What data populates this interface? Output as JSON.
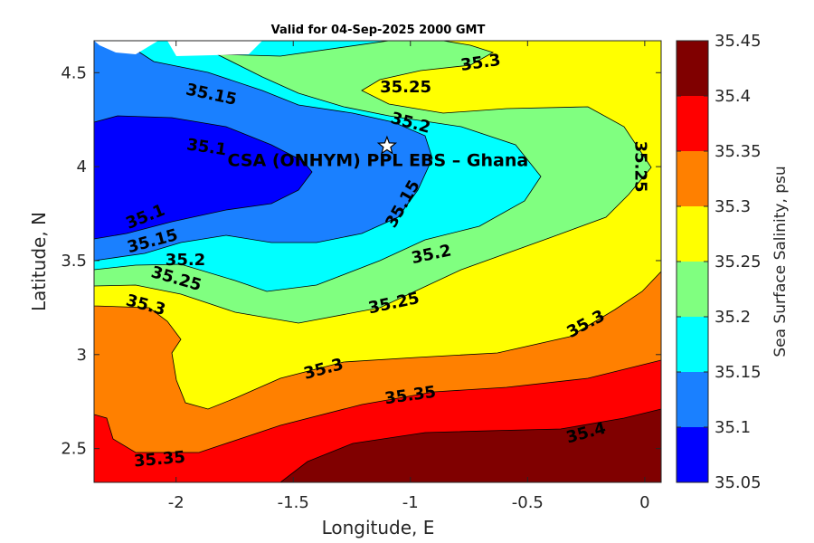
{
  "chart_data": {
    "type": "contour",
    "title": "Valid for 04-Sep-2025 2000 GMT",
    "xlabel": "Longitude, E",
    "ylabel": "Latitude, N",
    "xlim": [
      -2.35,
      0.07
    ],
    "ylim": [
      2.32,
      4.67
    ],
    "x_ticks": [
      -2,
      -1.5,
      -1,
      -0.5,
      0
    ],
    "x_tick_labels": [
      "-2",
      "-1.5",
      "-1",
      "-0.5",
      "0"
    ],
    "y_ticks": [
      2.5,
      3,
      3.5,
      4,
      4.5
    ],
    "y_tick_labels": [
      "2.5",
      "3",
      "3.5",
      "4",
      "4.5"
    ],
    "colorbar": {
      "label": "Sea Surface Salinity, psu",
      "levels": [
        35.05,
        35.1,
        35.15,
        35.2,
        35.25,
        35.3,
        35.35,
        35.4,
        35.45
      ],
      "level_labels": [
        "35.05",
        "35.1",
        "35.15",
        "35.2",
        "35.25",
        "35.3",
        "35.35",
        "35.4",
        "35.45"
      ],
      "colors": [
        "#0000ff",
        "#1a80ff",
        "#00ffff",
        "#80ff80",
        "#ffff00",
        "#ff8000",
        "#ff0000",
        "#800000"
      ]
    },
    "contour_labels": [
      {
        "text": "35.3",
        "lon": -0.7,
        "lat": 4.55
      },
      {
        "text": "35.25",
        "lon": -1.02,
        "lat": 4.42
      },
      {
        "text": "35.15",
        "lon": -1.85,
        "lat": 4.38
      },
      {
        "text": "35.2",
        "lon": -1.0,
        "lat": 4.23
      },
      {
        "text": "35.1",
        "lon": -1.87,
        "lat": 4.1
      },
      {
        "text": "35.25",
        "lon": -0.02,
        "lat": 4.0
      },
      {
        "text": "35.15",
        "lon": -1.03,
        "lat": 3.8
      },
      {
        "text": "35.1",
        "lon": -2.13,
        "lat": 3.73
      },
      {
        "text": "35.15",
        "lon": -2.1,
        "lat": 3.6
      },
      {
        "text": "35.2",
        "lon": -1.96,
        "lat": 3.5
      },
      {
        "text": "35.2",
        "lon": -0.91,
        "lat": 3.53
      },
      {
        "text": "35.25",
        "lon": -2.0,
        "lat": 3.4
      },
      {
        "text": "35.25",
        "lon": -1.07,
        "lat": 3.27
      },
      {
        "text": "35.3",
        "lon": -2.13,
        "lat": 3.26
      },
      {
        "text": "35.3",
        "lon": -0.25,
        "lat": 3.16
      },
      {
        "text": "35.3",
        "lon": -1.37,
        "lat": 2.92
      },
      {
        "text": "35.35",
        "lon": -1.0,
        "lat": 2.78
      },
      {
        "text": "35.4",
        "lon": -0.25,
        "lat": 2.58
      },
      {
        "text": "35.35",
        "lon": -2.07,
        "lat": 2.44
      }
    ],
    "site": {
      "name": "CSA (ONHYM) PPL EBS  – Ghana",
      "lon": -1.1,
      "lat": 4.11
    }
  }
}
